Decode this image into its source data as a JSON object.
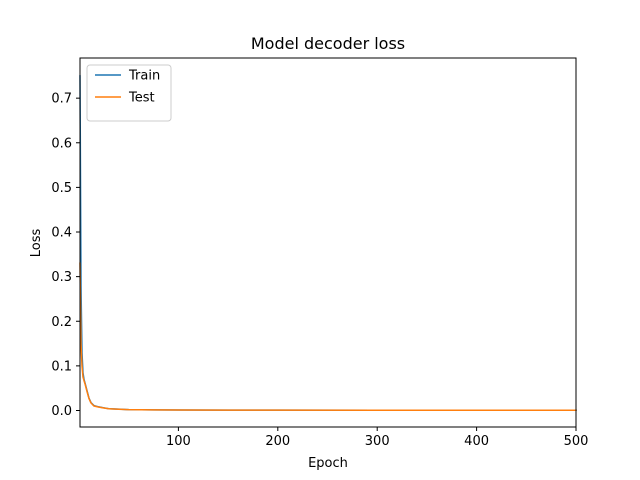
{
  "chart_data": {
    "type": "line",
    "title": "Model decoder loss",
    "xlabel": "Epoch",
    "ylabel": "Loss",
    "xlim": [
      1,
      500
    ],
    "ylim": [
      -0.037,
      0.79
    ],
    "xticks": [
      100,
      200,
      300,
      400,
      500
    ],
    "yticks": [
      0.0,
      0.1,
      0.2,
      0.3,
      0.4,
      0.5,
      0.6,
      0.7
    ],
    "xtick_labels": [
      "100",
      "200",
      "300",
      "400",
      "500"
    ],
    "ytick_labels": [
      "0.0",
      "0.1",
      "0.2",
      "0.3",
      "0.4",
      "0.5",
      "0.6",
      "0.7"
    ],
    "grid": false,
    "legend_position": "top-left",
    "series": [
      {
        "name": "Train",
        "color": "#1f77b4",
        "x": [
          1,
          2,
          3,
          4,
          5,
          6,
          8,
          10,
          12,
          15,
          20,
          25,
          30,
          40,
          50,
          75,
          100,
          150,
          200,
          300,
          400,
          500
        ],
        "y": [
          0.75,
          0.28,
          0.13,
          0.085,
          0.07,
          0.062,
          0.045,
          0.028,
          0.018,
          0.011,
          0.008,
          0.006,
          0.004,
          0.003,
          0.002,
          0.0015,
          0.001,
          0.0008,
          0.0007,
          0.0006,
          0.0005,
          0.0005
        ]
      },
      {
        "name": "Test",
        "color": "#ff7f0e",
        "x": [
          1,
          2,
          3,
          4,
          5,
          6,
          8,
          10,
          12,
          15,
          20,
          25,
          30,
          40,
          50,
          75,
          100,
          150,
          200,
          300,
          400,
          500
        ],
        "y": [
          0.33,
          0.15,
          0.1,
          0.075,
          0.067,
          0.06,
          0.043,
          0.027,
          0.017,
          0.01,
          0.0075,
          0.0055,
          0.0038,
          0.0028,
          0.0019,
          0.0014,
          0.001,
          0.0008,
          0.0007,
          0.0006,
          0.0005,
          0.0005
        ]
      }
    ]
  }
}
